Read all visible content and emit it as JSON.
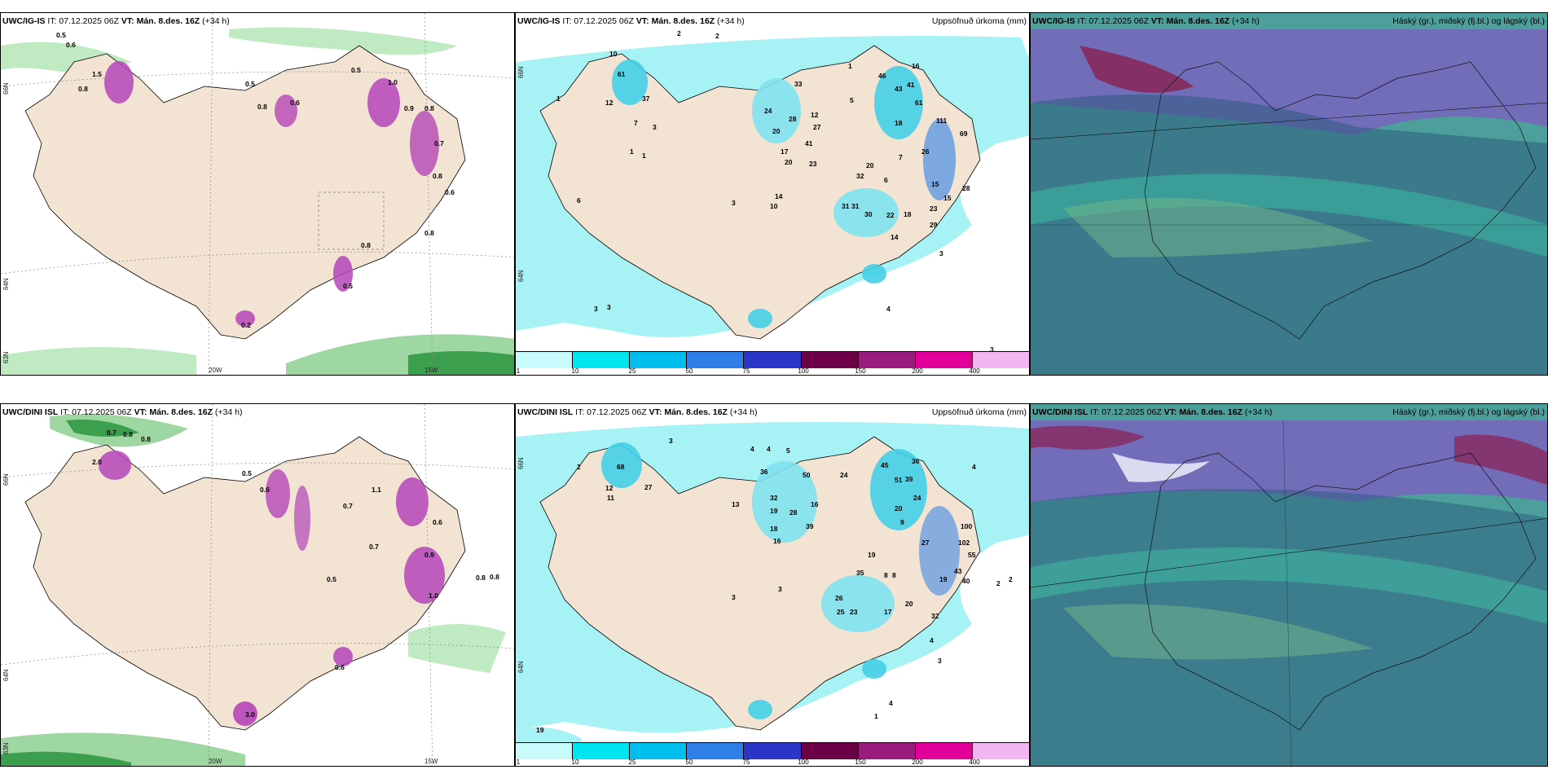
{
  "panels": {
    "top_left": {
      "model": "UWC/IG-IS",
      "it_label": "IT: 07.12.2025 06Z",
      "vt_label": "VT: Mán. 8.des. 16Z",
      "lead": "(+34 h)",
      "lat_labels": [
        "66N",
        "64N",
        "63N"
      ],
      "lon_labels": [
        "20W",
        "15W"
      ],
      "values": [
        "0.5",
        "0.6",
        "0.8",
        "1.5",
        "0.5",
        "0.8",
        "0.6",
        "1.0",
        "0.9",
        "0.8",
        "0.7",
        "0.8",
        "0.6",
        "0.5",
        "0.8",
        "0.5",
        "0.8",
        "0.2"
      ]
    },
    "top_mid": {
      "model": "UWC/IG-IS",
      "it_label": "IT: 07.12.2025 06Z",
      "vt_label": "VT: Mán. 8.des. 16Z",
      "lead": "(+34 h)",
      "right_title": "Uppsöfnuð úrkoma (mm)",
      "lat_labels": [
        "66N",
        "64N"
      ],
      "values": [
        "2",
        "2",
        "1",
        "10",
        "12",
        "37",
        "61",
        "7",
        "3",
        "1",
        "24",
        "20",
        "28",
        "23",
        "17",
        "41",
        "20",
        "33",
        "12",
        "27",
        "46",
        "43",
        "41",
        "16",
        "61",
        "18",
        "111",
        "26",
        "69",
        "20",
        "7",
        "5",
        "32",
        "6",
        "31",
        "31",
        "30",
        "22",
        "15",
        "18",
        "23",
        "15",
        "28",
        "29",
        "14",
        "3",
        "4",
        "3",
        "3",
        "3",
        "1",
        "1",
        "6",
        "3",
        "10",
        "14"
      ]
    },
    "top_right": {
      "model": "UWC/IG-IS",
      "it_label": "IT: 07.12.2025 06Z",
      "vt_label": "VT: Mán. 8.des. 16Z",
      "lead": "(+34 h)",
      "right_title": "Háský (gr.), miðský (fj.bl.) og lágský (bl.)"
    },
    "bottom_left": {
      "model": "UWC/DINI ISL",
      "it_label": "IT: 07.12.2025 06Z",
      "vt_label": "VT: Mán. 8.des. 16Z",
      "lead": "(+34 h)",
      "lat_labels": [
        "66N",
        "64N",
        "63N"
      ],
      "lon_labels": [
        "20W",
        "15W"
      ],
      "values": [
        "0.8",
        "0.8",
        "2.0",
        "0.7",
        "0.5",
        "0.6",
        "0.7",
        "1.1",
        "0.6",
        "0.5",
        "0.9",
        "1.0",
        "0.8",
        "0.8",
        "3.0",
        "0.6",
        "0.7"
      ]
    },
    "bottom_mid": {
      "model": "UWC/DINI ISL",
      "it_label": "IT: 07.12.2025 06Z",
      "vt_label": "VT: Mán. 8.des. 16Z",
      "lead": "(+34 h)",
      "right_title": "Uppsöfnuð úrkoma (mm)",
      "lat_labels": [
        "66N",
        "64N"
      ],
      "values": [
        "3",
        "4",
        "4",
        "5",
        "2",
        "12",
        "11",
        "27",
        "68",
        "36",
        "50",
        "24",
        "45",
        "51",
        "39",
        "36",
        "24",
        "32",
        "19",
        "28",
        "39",
        "16",
        "9",
        "20",
        "27",
        "100",
        "102",
        "55",
        "18",
        "16",
        "35",
        "19",
        "8",
        "8",
        "26",
        "23",
        "20",
        "17",
        "19",
        "40",
        "43",
        "32",
        "25",
        "4",
        "2",
        "2",
        "3",
        "4",
        "4",
        "1",
        "13",
        "19",
        "3",
        "3"
      ]
    },
    "bottom_right": {
      "model": "UWC/DINI ISL",
      "it_label": "IT: 07.12.2025 06Z",
      "vt_label": "VT: Mán. 8.des. 16Z",
      "lead": "(+34 h)",
      "right_title": "Háský (gr.), miðský (fj.bl.) og lágský (bl.)"
    }
  },
  "colorbar": {
    "ticks": [
      "1",
      "10",
      "25",
      "50",
      "75",
      "100",
      "150",
      "200",
      "400"
    ],
    "colors": [
      "#c8fbfb",
      "#00e6f0",
      "#00bfef",
      "#2f7fe8",
      "#2a36c8",
      "#6b0046",
      "#9a1c7c",
      "#e1009a",
      "#f3b6f0"
    ]
  },
  "colors": {
    "land": "#f2e3d3",
    "ocean": "#ffffff",
    "precip_light": "#a6f2f4",
    "precip_mid": "#45cfe8",
    "snow_purple": "#b545b8",
    "green_light": "#bfeac2",
    "green_dark": "#3c9f4e",
    "cloud_high": "#4c9f9a",
    "cloud_mid": "#7a60c0",
    "cloud_low": "#2b5b80"
  }
}
